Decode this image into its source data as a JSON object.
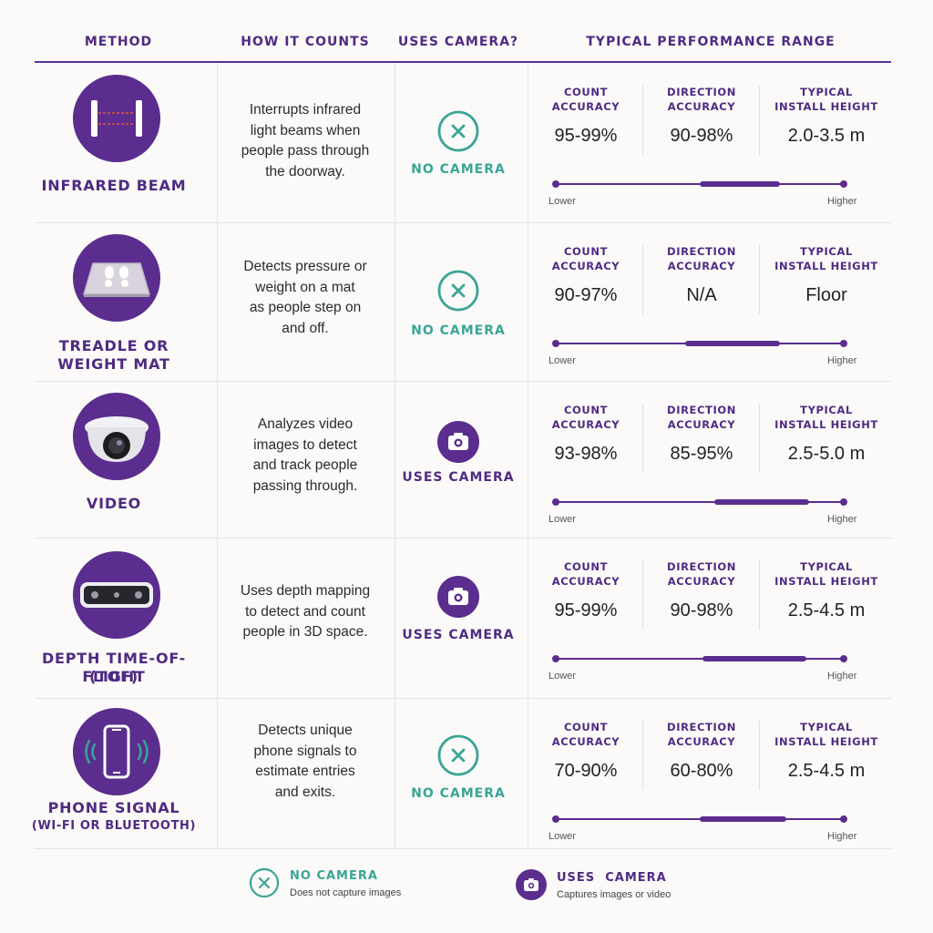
{
  "headers": {
    "method": "METHOD",
    "how": "HOW IT COUNTS",
    "camera": "USES CAMERA?",
    "range": "TYPICAL PERFORMANCE RANGE"
  },
  "metric_labels": {
    "count": [
      "COUNT",
      "ACCURACY"
    ],
    "direction": [
      "DIRECTION",
      "ACCURACY"
    ],
    "height": [
      "TYPICAL",
      "INSTALL HEIGHT"
    ]
  },
  "scale": {
    "low": "Lower",
    "high": "Higher"
  },
  "colors": {
    "purple": "#5b2d8e",
    "teal": "#3aa597",
    "text": "#2b2b2b"
  },
  "rows": [
    {
      "name": [
        "INFRARED BEAM"
      ],
      "sub": "",
      "icon": "infrared-beam-icon",
      "how": [
        "Interrupts infrared",
        "light beams when",
        "people pass through",
        "the doorway."
      ],
      "camera": "NO CAMERA",
      "uses_camera": false,
      "count_accuracy": "95-99%",
      "direction_accuracy": "90-98%",
      "install_height": "2.0-3.5 m",
      "range": [
        0.5,
        0.78
      ]
    },
    {
      "name": [
        "TREADLE OR",
        "WEIGHT MAT"
      ],
      "sub": "",
      "icon": "footprint-mat-icon",
      "how": [
        "Detects pressure or",
        "weight on a mat",
        "as people step on",
        "and off."
      ],
      "camera": "NO CAMERA",
      "uses_camera": false,
      "count_accuracy": "90-97%",
      "direction_accuracy": "N/A",
      "install_height": "Floor",
      "range": [
        0.45,
        0.78
      ]
    },
    {
      "name": [
        "VIDEO"
      ],
      "sub": "",
      "icon": "dome-camera-icon",
      "how": [
        "Analyzes video",
        "images to detect",
        "and track people",
        "passing through."
      ],
      "camera": "USES CAMERA",
      "uses_camera": true,
      "count_accuracy": "93-98%",
      "direction_accuracy": "85-95%",
      "install_height": "2.5-5.0 m",
      "range": [
        0.55,
        0.88
      ]
    },
    {
      "name": [
        "DEPTH TIME-OF-FLIGHT",
        "(TOF)"
      ],
      "sub": "",
      "icon": "depth-sensor-icon",
      "how": [
        "Uses depth mapping",
        "to detect and count",
        "people in 3D space."
      ],
      "camera": "USES CAMERA",
      "uses_camera": true,
      "count_accuracy": "95-99%",
      "direction_accuracy": "90-98%",
      "install_height": "2.5-4.5 m",
      "range": [
        0.51,
        0.87
      ]
    },
    {
      "name": [
        "PHONE SIGNAL"
      ],
      "sub": "(WI-FI OR BLUETOOTH)",
      "icon": "phone-signal-icon",
      "how": [
        "Detects unique",
        "phone signals to",
        "estimate entries",
        "and exits."
      ],
      "camera": "NO CAMERA",
      "uses_camera": false,
      "count_accuracy": "70-90%",
      "direction_accuracy": "60-80%",
      "install_height": "2.5-4.5 m",
      "range": [
        0.5,
        0.8
      ]
    }
  ],
  "legend": {
    "no_camera": {
      "title": "NO CAMERA",
      "desc": "Does not capture images"
    },
    "uses_camera": {
      "title": "USES  CAMERA",
      "desc": "Captures images or video"
    }
  }
}
